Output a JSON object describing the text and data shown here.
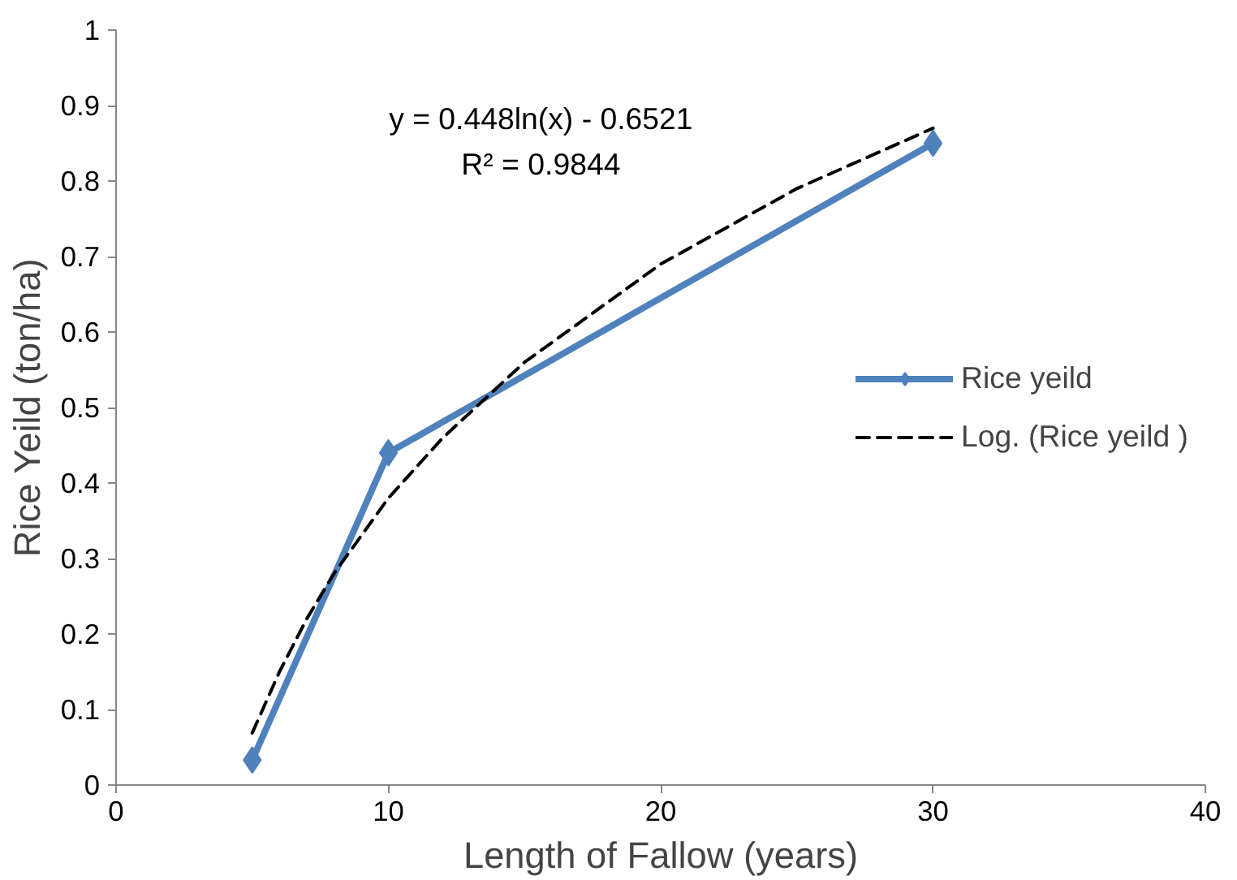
{
  "chart_data": {
    "type": "line",
    "xlabel": "Length of Fallow (years)",
    "ylabel": "Rice Yeild (ton/ha)",
    "annotations": [
      "y = 0.448ln(x) - 0.6521",
      "R² = 0.9844"
    ],
    "series": [
      {
        "name": "Rice yeild",
        "color": "#4f81bd",
        "x": [
          5,
          10,
          30
        ],
        "values": [
          0.033,
          0.44,
          0.85
        ],
        "marker": "diamond",
        "line_style": "solid"
      },
      {
        "name": "Log. (Rice yeild )",
        "color": "#000000",
        "type": "line",
        "x": [
          5,
          6,
          7,
          8,
          10,
          12,
          15,
          20,
          25,
          30
        ],
        "values": [
          0.069,
          0.15,
          0.22,
          0.28,
          0.38,
          0.46,
          0.56,
          0.69,
          0.79,
          0.87
        ],
        "marker": "none",
        "line_style": "dashed"
      }
    ],
    "xlim": [
      0,
      40
    ],
    "xticks": [
      0,
      10,
      20,
      30,
      40
    ],
    "ylim": [
      0,
      1
    ],
    "yticks": [
      0,
      0.1,
      0.2,
      0.3,
      0.4,
      0.5,
      0.6,
      0.7,
      0.8,
      0.9,
      1
    ],
    "grid": false,
    "legend": "right"
  }
}
